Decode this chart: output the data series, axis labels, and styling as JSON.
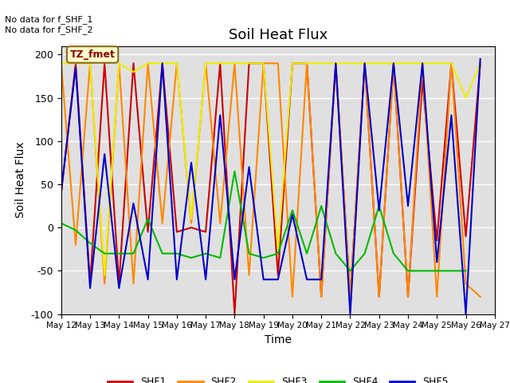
{
  "title": "Soil Heat Flux",
  "xlabel": "Time",
  "ylabel": "Soil Heat Flux",
  "ylim": [
    -100,
    210
  ],
  "annotation_text": "No data for f_SHF_1\nNo data for f_SHF_2",
  "tz_label": "TZ_fmet",
  "bg_color": "#e0e0e0",
  "series": {
    "SHF1": {
      "color": "#cc0000",
      "x": [
        12,
        12.5,
        13,
        13.5,
        14,
        14.5,
        15,
        15.5,
        16,
        16.5,
        17,
        17.5,
        18,
        18.5,
        19,
        19.5,
        20,
        20.5,
        21,
        21.5,
        22,
        22.5,
        23,
        23.5,
        24,
        24.5,
        25,
        25.5,
        26,
        26.5
      ],
      "y": [
        40,
        190,
        -65,
        190,
        -65,
        190,
        -5,
        190,
        -5,
        0,
        -5,
        190,
        -100,
        190,
        190,
        -55,
        190,
        190,
        -80,
        190,
        -80,
        190,
        -80,
        190,
        -80,
        170,
        -15,
        190,
        -10,
        190
      ]
    },
    "SHF2": {
      "color": "#ff8800",
      "x": [
        12,
        12.5,
        13,
        13.5,
        14,
        14.5,
        15,
        15.5,
        16,
        16.5,
        17,
        17.5,
        18,
        18.5,
        19,
        19.5,
        20,
        20.5,
        21,
        21.5,
        22,
        22.5,
        23,
        23.5,
        24,
        24.5,
        25,
        25.5,
        26,
        26.5
      ],
      "y": [
        190,
        -20,
        190,
        -65,
        190,
        -65,
        190,
        5,
        190,
        5,
        190,
        5,
        190,
        -55,
        190,
        190,
        -80,
        190,
        -80,
        190,
        -80,
        190,
        -80,
        190,
        -80,
        190,
        -80,
        190,
        -65,
        -80
      ]
    },
    "SHF3": {
      "color": "#eeee00",
      "x": [
        12,
        12.5,
        13,
        13.5,
        14,
        14.5,
        15,
        15.5,
        16,
        16.5,
        17,
        17.5,
        18,
        18.5,
        19,
        19.5,
        20,
        20.5,
        21,
        21.5,
        22,
        22.5,
        23,
        23.5,
        24,
        24.5,
        25,
        25.5,
        26,
        26.5
      ],
      "y": [
        190,
        190,
        190,
        -55,
        190,
        180,
        190,
        190,
        190,
        10,
        190,
        190,
        190,
        190,
        190,
        -25,
        190,
        190,
        190,
        190,
        190,
        190,
        190,
        190,
        190,
        190,
        190,
        190,
        150,
        190
      ]
    },
    "SHF4": {
      "color": "#00bb00",
      "x": [
        12,
        12.5,
        13,
        13.5,
        14,
        14.5,
        15,
        15.5,
        16,
        16.5,
        17,
        17.5,
        18,
        18.5,
        19,
        19.5,
        20,
        20.5,
        21,
        21.5,
        22,
        22.5,
        23,
        23.5,
        24,
        24.5,
        25,
        25.5,
        26
      ],
      "y": [
        5,
        -3,
        -18,
        -30,
        -30,
        -30,
        10,
        -30,
        -30,
        -35,
        -30,
        -35,
        65,
        -30,
        -35,
        -30,
        20,
        -30,
        25,
        -30,
        -50,
        -30,
        25,
        -30,
        -50,
        -50,
        -50,
        -50,
        -50
      ]
    },
    "SHF5": {
      "color": "#0000cc",
      "x": [
        12,
        12.5,
        13,
        13.5,
        14,
        14.5,
        15,
        15.5,
        16,
        16.5,
        17,
        17.5,
        18,
        18.5,
        19,
        19.5,
        20,
        20.5,
        21,
        21.5,
        22,
        22.5,
        23,
        23.5,
        24,
        24.5,
        25,
        25.5,
        26,
        26.5
      ],
      "y": [
        42,
        185,
        -70,
        85,
        -70,
        28,
        -60,
        190,
        -60,
        75,
        -60,
        130,
        -60,
        70,
        -60,
        -60,
        15,
        -60,
        -60,
        190,
        -100,
        190,
        20,
        190,
        25,
        190,
        -40,
        130,
        -100,
        195
      ]
    }
  },
  "xtick_positions": [
    12,
    13,
    14,
    15,
    16,
    17,
    18,
    19,
    20,
    21,
    22,
    23,
    24,
    25,
    26,
    27
  ],
  "xtick_labels": [
    "May 12",
    "May 13",
    "May 14",
    "May 15",
    "May 16",
    "May 17",
    "May 18",
    "May 19",
    "May 20",
    "May 21",
    "May 22",
    "May 23",
    "May 24",
    "May 25",
    "May 26",
    "May 27"
  ],
  "ytick_positions": [
    -100,
    -50,
    0,
    50,
    100,
    150,
    200
  ],
  "legend_colors": [
    "#cc0000",
    "#ff8800",
    "#eeee00",
    "#00bb00",
    "#0000cc"
  ],
  "legend_labels": [
    "SHF1",
    "SHF2",
    "SHF3",
    "SHF4",
    "SHF5"
  ]
}
